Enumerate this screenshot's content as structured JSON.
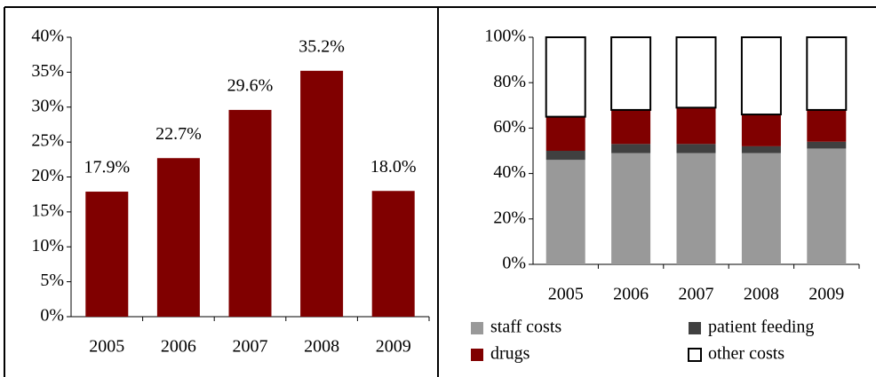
{
  "chart_data": [
    {
      "type": "bar",
      "categories": [
        "2005",
        "2006",
        "2007",
        "2008",
        "2009"
      ],
      "values": [
        17.9,
        22.7,
        29.6,
        35.2,
        18.0
      ],
      "value_labels": [
        "17.9%",
        "22.7%",
        "29.6%",
        "35.2%",
        "18.0%"
      ],
      "color": "#800000",
      "ylim": [
        0,
        40
      ],
      "yticks": [
        {
          "value": 0,
          "label": "0%"
        },
        {
          "value": 5,
          "label": "5%"
        },
        {
          "value": 10,
          "label": "10%"
        },
        {
          "value": 15,
          "label": "15%"
        },
        {
          "value": 20,
          "label": "20%"
        },
        {
          "value": 25,
          "label": "25%"
        },
        {
          "value": 30,
          "label": "30%"
        },
        {
          "value": 35,
          "label": "35%"
        },
        {
          "value": 40,
          "label": "40%"
        }
      ]
    },
    {
      "type": "stacked_bar",
      "categories": [
        "2005",
        "2006",
        "2007",
        "2008",
        "2009"
      ],
      "series": [
        {
          "name": "staff costs",
          "color": "#999999",
          "values": [
            46,
            49,
            49,
            49,
            51
          ]
        },
        {
          "name": "patient feeding",
          "color": "#404040",
          "values": [
            4,
            4,
            4,
            3,
            3
          ]
        },
        {
          "name": "drugs",
          "color": "#800000",
          "values": [
            15,
            15,
            16,
            14,
            14
          ]
        },
        {
          "name": "other costs",
          "color": "#ffffff",
          "values": [
            35,
            32,
            31,
            34,
            32
          ]
        }
      ],
      "ylim": [
        0,
        100
      ],
      "yticks": [
        {
          "value": 0,
          "label": "0%"
        },
        {
          "value": 20,
          "label": "20%"
        },
        {
          "value": 40,
          "label": "40%"
        },
        {
          "value": 60,
          "label": "60%"
        },
        {
          "value": 80,
          "label": "80%"
        },
        {
          "value": 100,
          "label": "100%"
        }
      ],
      "legend": "bottom"
    }
  ]
}
